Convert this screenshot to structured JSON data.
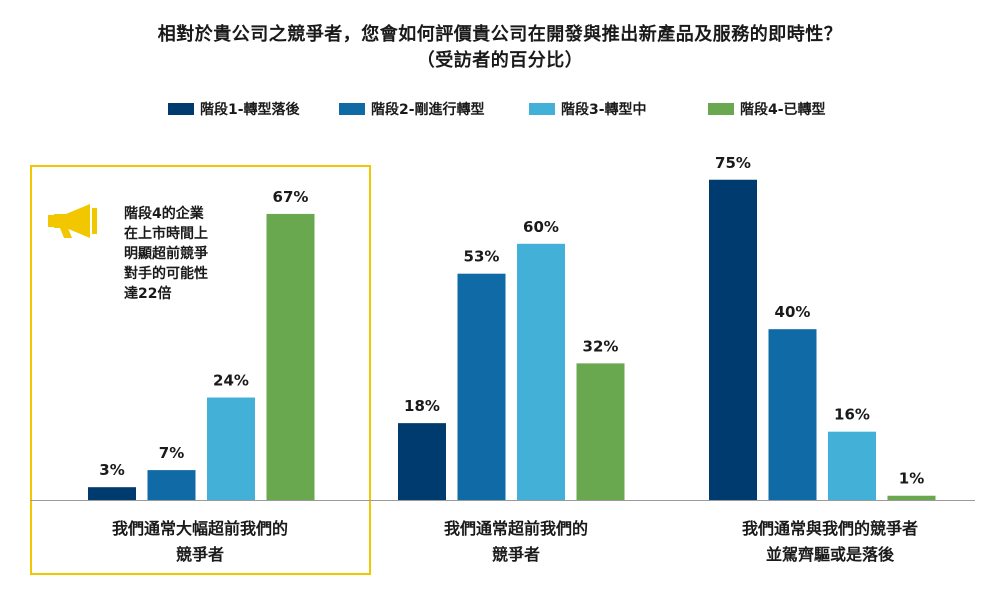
{
  "title": {
    "line1": "相對於貴公司之競爭者，您會如何評價貴公司在開發與推出新產品及服務的即時性？",
    "line2": "（受訪者的百分比）"
  },
  "callout": {
    "text": "階段4的企業\n在上市時間上\n明顯超前競爭\n對手的可能性\n達22倍",
    "icon": "megaphone-icon",
    "icon_color": "#f2c700",
    "highlight_color": "#f2c700"
  },
  "chart_data": {
    "type": "bar",
    "title": "相對於貴公司之競爭者，您會如何評價貴公司在開發與推出新產品及服務的即時性？",
    "subtitle": "（受訪者的百分比）",
    "categories": [
      "我們通常大幅超前我們的\n競爭者",
      "我們通常超前我們的\n競爭者",
      "我們通常與我們的競爭者\n並駕齊驅或是落後"
    ],
    "series": [
      {
        "name": "階段1-轉型落後",
        "color": "#003b6f",
        "values": [
          3,
          18,
          75
        ]
      },
      {
        "name": "階段2-剛進行轉型",
        "color": "#0f6aa6",
        "values": [
          7,
          53,
          40
        ]
      },
      {
        "name": "階段3-轉型中",
        "color": "#43b0d8",
        "values": [
          24,
          60,
          16
        ]
      },
      {
        "name": "階段4-已轉型",
        "color": "#6aa84f",
        "values": [
          67,
          32,
          1
        ]
      }
    ],
    "value_suffix": "%",
    "ylim": [
      0,
      75
    ],
    "grid": false,
    "legend": "top"
  }
}
